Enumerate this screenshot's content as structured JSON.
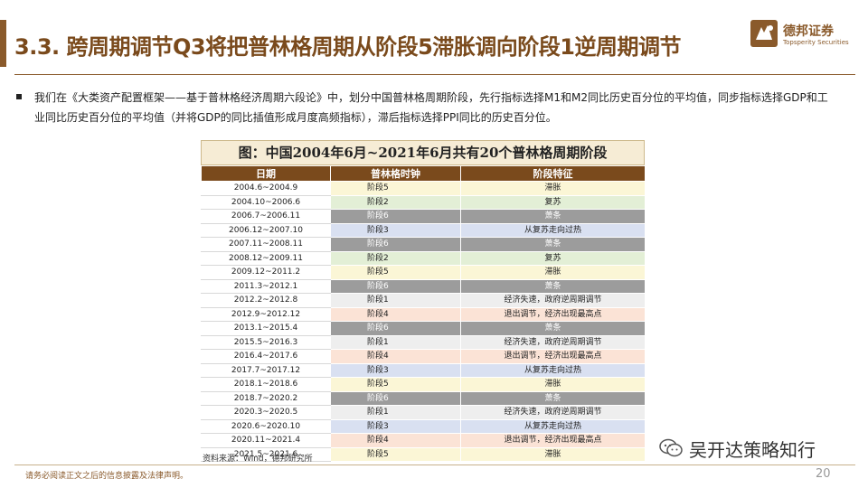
{
  "header": {
    "title": "3.3. 跨周期调节Q3将把普林格周期从阶段5滞胀调向阶段1逆周期调节",
    "logo_cn": "德邦证券",
    "logo_en": "Topsperity Securities"
  },
  "bullet": "我们在《大类资产配置框架——基于普林格经济周期六段论》中，划分中国普林格周期阶段，先行指标选择M1和M2同比历史百分位的平均值，同步指标选择GDP和工业同比历史百分位的平均值（并将GDP的同比插值形成月度高频指标），滞后指标选择PPI同比的历史百分位。",
  "table": {
    "title": "图：中国2004年6月~2021年6月共有20个普林格周期阶段",
    "headers": [
      "日期",
      "普林格时钟",
      "阶段特征"
    ],
    "rows": [
      {
        "date": "2004.6~2004.9",
        "stage": "阶段5",
        "feature": "滞胀",
        "cls": "s5"
      },
      {
        "date": "2004.10~2006.6",
        "stage": "阶段2",
        "feature": "复苏",
        "cls": "s2"
      },
      {
        "date": "2006.7~2006.11",
        "stage": "阶段6",
        "feature": "萧条",
        "cls": "s6"
      },
      {
        "date": "2006.12~2007.10",
        "stage": "阶段3",
        "feature": "从复苏走向过热",
        "cls": "s3"
      },
      {
        "date": "2007.11~2008.11",
        "stage": "阶段6",
        "feature": "萧条",
        "cls": "s6"
      },
      {
        "date": "2008.12~2009.11",
        "stage": "阶段2",
        "feature": "复苏",
        "cls": "s2"
      },
      {
        "date": "2009.12~2011.2",
        "stage": "阶段5",
        "feature": "滞胀",
        "cls": "s5"
      },
      {
        "date": "2011.3~2012.1",
        "stage": "阶段6",
        "feature": "萧条",
        "cls": "s6"
      },
      {
        "date": "2012.2~2012.8",
        "stage": "阶段1",
        "feature": "经济失速，政府逆周期调节",
        "cls": "s1"
      },
      {
        "date": "2012.9~2012.12",
        "stage": "阶段4",
        "feature": "退出调节，经济出现最高点",
        "cls": "s4"
      },
      {
        "date": "2013.1~2015.4",
        "stage": "阶段6",
        "feature": "萧条",
        "cls": "s6"
      },
      {
        "date": "2015.5~2016.3",
        "stage": "阶段1",
        "feature": "经济失速，政府逆周期调节",
        "cls": "s1"
      },
      {
        "date": "2016.4~2017.6",
        "stage": "阶段4",
        "feature": "退出调节，经济出现最高点",
        "cls": "s4"
      },
      {
        "date": "2017.7~2017.12",
        "stage": "阶段3",
        "feature": "从复苏走向过热",
        "cls": "s3"
      },
      {
        "date": "2018.1~2018.6",
        "stage": "阶段5",
        "feature": "滞胀",
        "cls": "s5"
      },
      {
        "date": "2018.7~2020.2",
        "stage": "阶段6",
        "feature": "萧条",
        "cls": "s6"
      },
      {
        "date": "2020.3~2020.5",
        "stage": "阶段1",
        "feature": "经济失速，政府逆周期调节",
        "cls": "s1"
      },
      {
        "date": "2020.6~2020.10",
        "stage": "阶段3",
        "feature": "从复苏走向过热",
        "cls": "s3"
      },
      {
        "date": "2020.11~2021.4",
        "stage": "阶段4",
        "feature": "退出调节，经济出现最高点",
        "cls": "s4"
      },
      {
        "date": "2021.5~2021.6",
        "stage": "阶段5",
        "feature": "滞胀",
        "cls": "s5"
      }
    ]
  },
  "source": "资料来源：Wind，德邦研究所",
  "watermark": "吴开达策略知行",
  "footer": {
    "disclaimer": "请务必阅读正文之后的信息披露及法律声明。",
    "page": "20"
  },
  "colors": {
    "brand": "#8a5a2b",
    "header_row": "#7a4a1c",
    "stage5": "#fbf6d6",
    "stage2": "#e3efd6",
    "stage6": "#9c9c9c",
    "stage3": "#d9e0f1",
    "stage1": "#eeeeee",
    "stage4": "#fbe3d6"
  }
}
